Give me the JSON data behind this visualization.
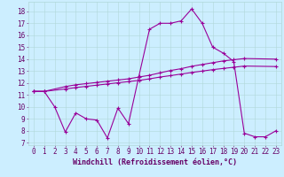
{
  "xlabel": "Windchill (Refroidissement éolien,°C)",
  "bg_color": "#cceeff",
  "line_color": "#990099",
  "xlim": [
    -0.5,
    23.5
  ],
  "ylim": [
    6.8,
    18.8
  ],
  "xticks": [
    0,
    1,
    2,
    3,
    4,
    5,
    6,
    7,
    8,
    9,
    10,
    11,
    12,
    13,
    14,
    15,
    16,
    17,
    18,
    19,
    20,
    21,
    22,
    23
  ],
  "yticks": [
    7,
    8,
    9,
    10,
    11,
    12,
    13,
    14,
    15,
    16,
    17,
    18
  ],
  "line1_x": [
    0,
    1,
    2,
    3,
    4,
    5,
    6,
    7,
    8,
    9,
    10,
    11,
    12,
    13,
    14,
    15,
    16,
    17,
    18,
    19,
    20,
    21,
    22,
    23
  ],
  "line1_y": [
    11.3,
    11.3,
    10.0,
    7.9,
    9.5,
    9.0,
    8.9,
    7.4,
    9.9,
    8.6,
    12.6,
    16.5,
    17.0,
    17.0,
    17.2,
    18.2,
    17.0,
    15.0,
    14.5,
    13.8,
    7.8,
    7.5,
    7.5,
    8.0
  ],
  "line2_x": [
    0,
    1,
    3,
    4,
    5,
    6,
    7,
    8,
    9,
    10,
    11,
    12,
    13,
    14,
    15,
    16,
    17,
    18,
    19,
    20,
    23
  ],
  "line2_y": [
    11.3,
    11.3,
    11.7,
    11.85,
    11.95,
    12.05,
    12.15,
    12.25,
    12.35,
    12.5,
    12.65,
    12.85,
    13.05,
    13.2,
    13.4,
    13.55,
    13.7,
    13.85,
    13.95,
    14.05,
    14.0
  ],
  "line3_x": [
    0,
    1,
    3,
    4,
    5,
    6,
    7,
    8,
    9,
    10,
    11,
    12,
    13,
    14,
    15,
    16,
    17,
    18,
    19,
    20,
    23
  ],
  "line3_y": [
    11.3,
    11.3,
    11.5,
    11.62,
    11.72,
    11.82,
    11.92,
    12.02,
    12.12,
    12.22,
    12.35,
    12.5,
    12.62,
    12.75,
    12.88,
    13.0,
    13.12,
    13.22,
    13.32,
    13.42,
    13.38
  ],
  "grid_color": "#b0d8d8",
  "font_color": "#660066",
  "tick_font_size": 5.5,
  "xlabel_font_size": 6.0
}
